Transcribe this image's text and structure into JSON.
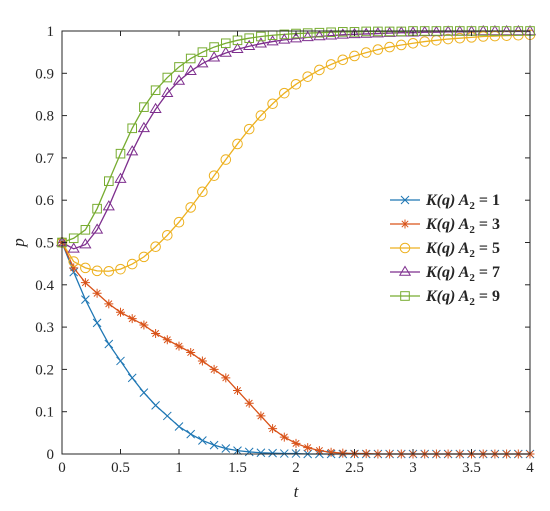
{
  "chart_data": {
    "type": "line",
    "xlabel": "t",
    "ylabel": "p",
    "xlim": [
      0,
      4
    ],
    "ylim": [
      0,
      1
    ],
    "xticks": [
      "0",
      "0.5",
      "1",
      "1.5",
      "2",
      "2.5",
      "3",
      "3.5",
      "4"
    ],
    "yticks": [
      "0",
      "0.1",
      "0.2",
      "0.3",
      "0.4",
      "0.5",
      "0.6",
      "0.7",
      "0.8",
      "0.9",
      "1"
    ],
    "grid": false,
    "legend_position": "right",
    "x": [
      0,
      0.1,
      0.2,
      0.3,
      0.4,
      0.5,
      0.6,
      0.7,
      0.8,
      0.9,
      1.0,
      1.1,
      1.2,
      1.3,
      1.4,
      1.5,
      1.6,
      1.7,
      1.8,
      1.9,
      2.0,
      2.1,
      2.2,
      2.3,
      2.4,
      2.5,
      2.6,
      2.7,
      2.8,
      2.9,
      3.0,
      3.1,
      3.2,
      3.3,
      3.4,
      3.5,
      3.6,
      3.7,
      3.8,
      3.9,
      4.0
    ],
    "series": [
      {
        "name": "K(q) A2 = 1",
        "legend_main": "K(q) A",
        "legend_sub": "2",
        "legend_tail": " = 1",
        "color": "#1f77b4",
        "marker": "x",
        "values": [
          0.5,
          0.43,
          0.365,
          0.31,
          0.26,
          0.22,
          0.18,
          0.145,
          0.115,
          0.09,
          0.065,
          0.047,
          0.032,
          0.021,
          0.013,
          0.008,
          0.005,
          0.003,
          0.002,
          0.001,
          0.001,
          0,
          0,
          0,
          0,
          0,
          0,
          0,
          0,
          0,
          0,
          0,
          0,
          0,
          0,
          0,
          0,
          0,
          0,
          0,
          0
        ]
      },
      {
        "name": "K(q) A2 = 3",
        "legend_main": "K(q) A",
        "legend_sub": "2",
        "legend_tail": " = 3",
        "color": "#d95319",
        "marker": "*",
        "values": [
          0.5,
          0.44,
          0.405,
          0.38,
          0.355,
          0.335,
          0.32,
          0.305,
          0.285,
          0.27,
          0.255,
          0.24,
          0.22,
          0.2,
          0.18,
          0.15,
          0.12,
          0.09,
          0.06,
          0.04,
          0.025,
          0.015,
          0.008,
          0.004,
          0.002,
          0.001,
          0.001,
          0,
          0,
          0,
          0,
          0,
          0,
          0,
          0,
          0,
          0,
          0,
          0,
          0,
          0
        ]
      },
      {
        "name": "K(q) A2 = 5",
        "legend_main": "K(q) A",
        "legend_sub": "2",
        "legend_tail": " = 5",
        "color": "#edb120",
        "marker": "o",
        "values": [
          0.5,
          0.455,
          0.44,
          0.433,
          0.432,
          0.437,
          0.449,
          0.466,
          0.49,
          0.517,
          0.548,
          0.583,
          0.62,
          0.658,
          0.696,
          0.733,
          0.768,
          0.8,
          0.828,
          0.853,
          0.874,
          0.892,
          0.908,
          0.921,
          0.932,
          0.941,
          0.949,
          0.956,
          0.962,
          0.967,
          0.971,
          0.975,
          0.978,
          0.981,
          0.983,
          0.985,
          0.987,
          0.988,
          0.989,
          0.99,
          0.991
        ]
      },
      {
        "name": "K(q) A2 = 7",
        "legend_main": "K(q) A",
        "legend_sub": "2",
        "legend_tail": " = 7",
        "color": "#7e2f8e",
        "marker": "triangle",
        "values": [
          0.5,
          0.485,
          0.495,
          0.53,
          0.585,
          0.65,
          0.715,
          0.77,
          0.815,
          0.853,
          0.882,
          0.905,
          0.923,
          0.937,
          0.948,
          0.957,
          0.964,
          0.97,
          0.975,
          0.979,
          0.982,
          0.985,
          0.987,
          0.989,
          0.991,
          0.992,
          0.993,
          0.994,
          0.995,
          0.996,
          0.996,
          0.997,
          0.997,
          0.998,
          0.998,
          0.998,
          0.999,
          0.999,
          0.999,
          0.999,
          0.999
        ]
      },
      {
        "name": "K(q) A2 = 9",
        "legend_main": "K(q) A",
        "legend_sub": "2",
        "legend_tail": " = 9",
        "color": "#77ac30",
        "marker": "square",
        "values": [
          0.5,
          0.51,
          0.53,
          0.58,
          0.645,
          0.71,
          0.77,
          0.82,
          0.86,
          0.89,
          0.915,
          0.935,
          0.95,
          0.962,
          0.971,
          0.978,
          0.983,
          0.987,
          0.99,
          0.992,
          0.994,
          0.995,
          0.996,
          0.997,
          0.998,
          0.998,
          0.999,
          0.999,
          0.999,
          0.999,
          1,
          1,
          1,
          1,
          1,
          1,
          1,
          1,
          1,
          1,
          1
        ]
      }
    ]
  }
}
